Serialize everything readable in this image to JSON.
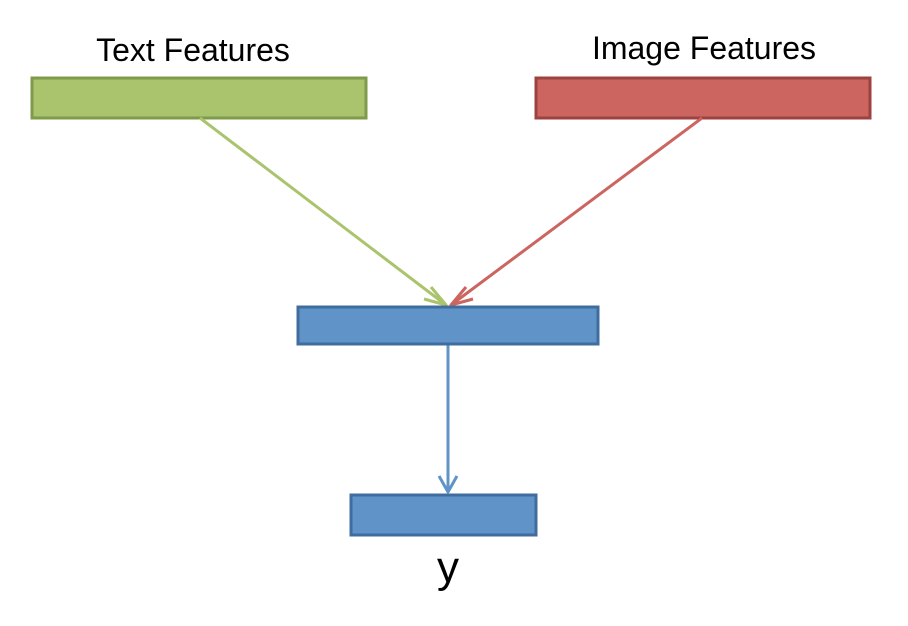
{
  "nodes": {
    "text_features": {
      "label": "Text Features",
      "color": "#aac46e",
      "border": "#7f9a4a"
    },
    "image_features": {
      "label": "Image Features",
      "color": "#cc6560",
      "border": "#9c4340"
    },
    "hidden": {
      "label": "",
      "color": "#6094c8",
      "border": "#3f6d9e"
    },
    "output": {
      "label": "y",
      "color": "#6094c8",
      "border": "#3f6d9e"
    }
  },
  "edges": [
    {
      "from": "text_features",
      "to": "hidden",
      "color": "#aac46e"
    },
    {
      "from": "image_features",
      "to": "hidden",
      "color": "#cc6560"
    },
    {
      "from": "hidden",
      "to": "output",
      "color": "#6094c8"
    }
  ]
}
